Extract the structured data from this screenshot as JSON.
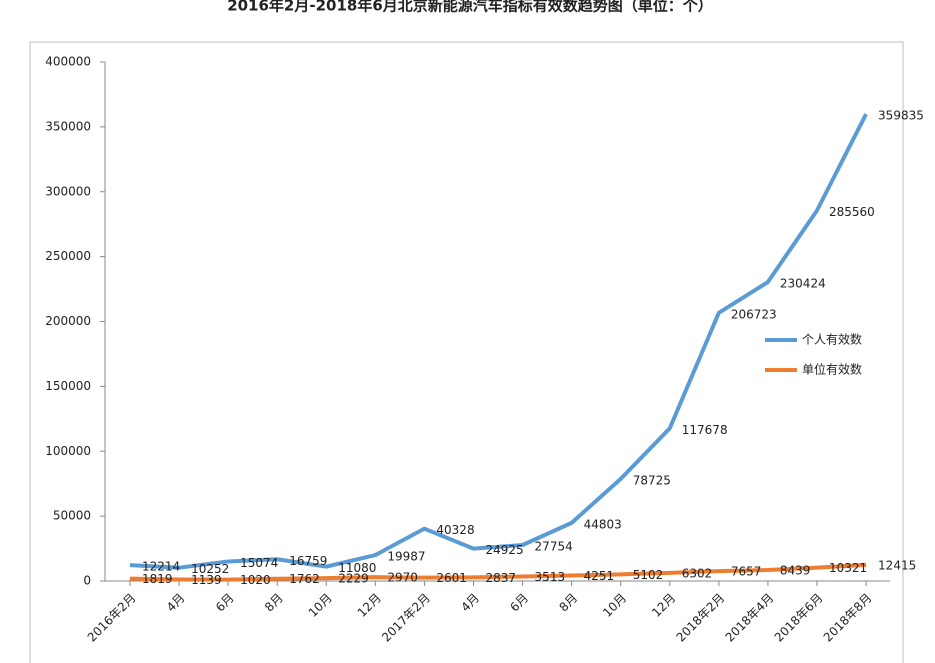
{
  "chart_data": {
    "type": "line",
    "title": "2016年2月-2018年6月北京新能源汽车指标有效数趋势图（单位：个）",
    "categories": [
      "2016年2月",
      "4月",
      "6月",
      "8月",
      "10月",
      "12月",
      "2017年2月",
      "4月",
      "6月",
      "8月",
      "10月",
      "12月",
      "2018年2月",
      "2018年4月",
      "2018年6月",
      "2018年8月"
    ],
    "series": [
      {
        "name": "个人有效数",
        "color": "#5b9bd5",
        "values": [
          12214,
          10252,
          15074,
          16759,
          11080,
          19987,
          40328,
          24925,
          27754,
          44803,
          78725,
          117678,
          206723,
          230424,
          285560,
          359835
        ]
      },
      {
        "name": "单位有效数",
        "color": "#ed7d31",
        "values": [
          1819,
          1139,
          1020,
          1762,
          2229,
          2970,
          2601,
          2837,
          3513,
          4251,
          5102,
          6302,
          7657,
          8439,
          10321,
          12415
        ]
      }
    ],
    "ylim": [
      0,
      400000
    ],
    "yticks": [
      0,
      50000,
      100000,
      150000,
      200000,
      250000,
      300000,
      350000,
      400000
    ],
    "grid": false,
    "legend": "right"
  }
}
